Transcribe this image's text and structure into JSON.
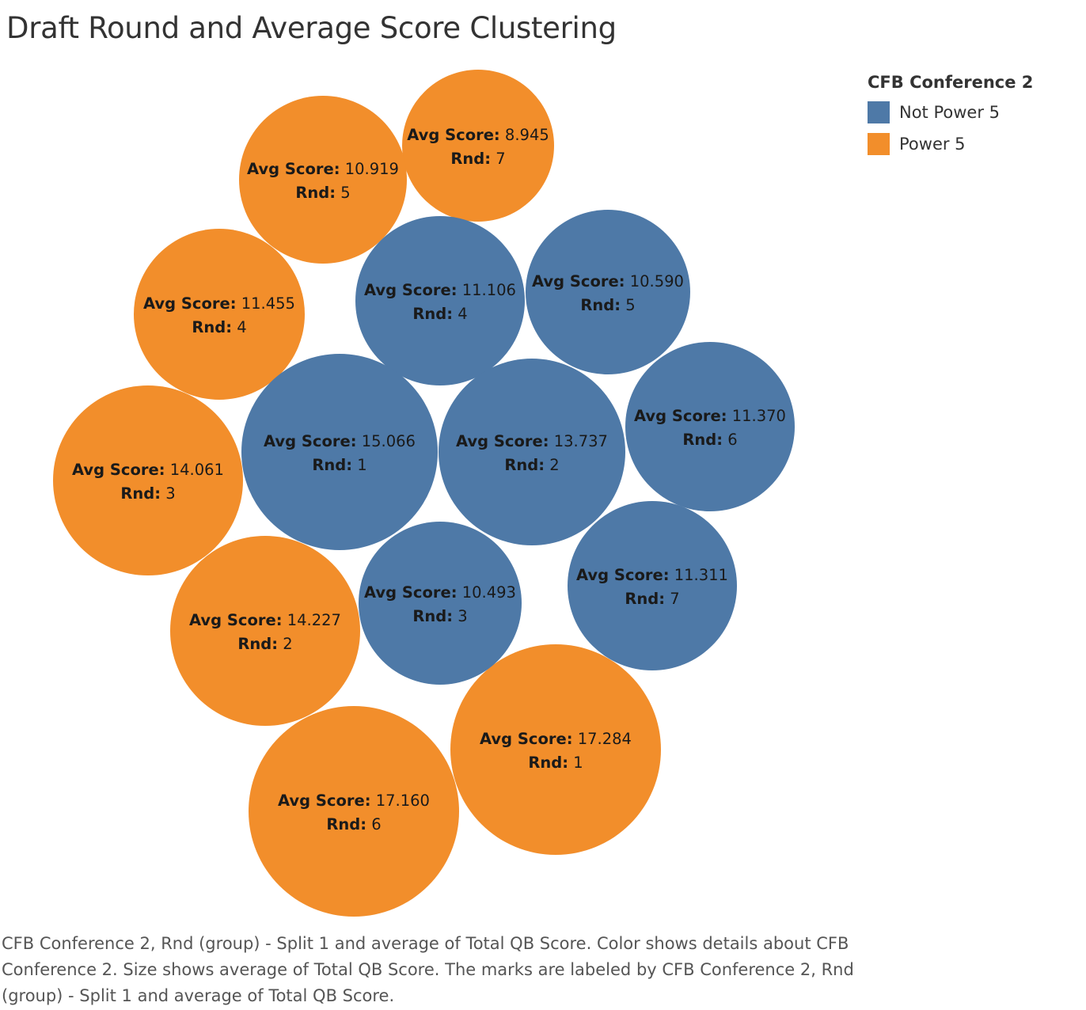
{
  "title": "Draft Round and Average Score Clustering",
  "legend": {
    "title": "CFB Conference 2",
    "items": [
      {
        "label": "Not Power 5",
        "color": "#4e79a7"
      },
      {
        "label": "Power 5",
        "color": "#f28e2b"
      }
    ]
  },
  "caption": "CFB Conference 2, Rnd (group) - Split 1 and average of Total QB Score.  Color shows details about CFB Conference 2.  Size shows average of Total QB Score.  The marks are labeled by CFB Conference 2, Rnd (group) - Split 1 and average of Total QB Score.",
  "chart_data": {
    "type": "packed-bubble",
    "title": "Draft Round and Average Score Clustering",
    "score_label": "Avg Score:",
    "round_label": "Rnd:",
    "color_field": "CFB Conference 2",
    "size_field": "Avg Score",
    "points": [
      {
        "group": "Power 5",
        "rnd": "7",
        "score": "8.945"
      },
      {
        "group": "Power 5",
        "rnd": "5",
        "score": "10.919"
      },
      {
        "group": "Power 5",
        "rnd": "4",
        "score": "11.455"
      },
      {
        "group": "Power 5",
        "rnd": "3",
        "score": "14.061"
      },
      {
        "group": "Power 5",
        "rnd": "2",
        "score": "14.227"
      },
      {
        "group": "Power 5",
        "rnd": "6",
        "score": "17.160"
      },
      {
        "group": "Power 5",
        "rnd": "1",
        "score": "17.284"
      },
      {
        "group": "Not Power 5",
        "rnd": "4",
        "score": "11.106"
      },
      {
        "group": "Not Power 5",
        "rnd": "5",
        "score": "10.590"
      },
      {
        "group": "Not Power 5",
        "rnd": "1",
        "score": "15.066"
      },
      {
        "group": "Not Power 5",
        "rnd": "2",
        "score": "13.737"
      },
      {
        "group": "Not Power 5",
        "rnd": "6",
        "score": "11.370"
      },
      {
        "group": "Not Power 5",
        "rnd": "3",
        "score": "10.493"
      },
      {
        "group": "Not Power 5",
        "rnd": "7",
        "score": "11.311"
      }
    ]
  }
}
